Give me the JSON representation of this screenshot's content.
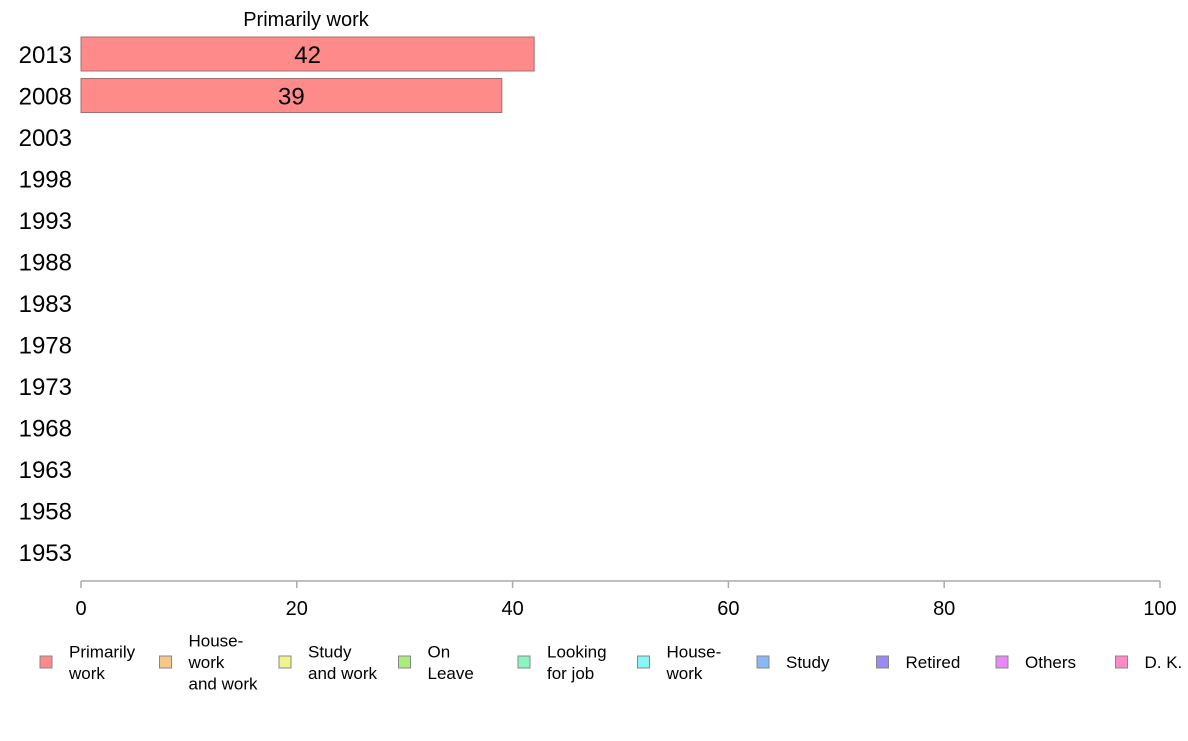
{
  "chart_data": {
    "type": "bar",
    "orientation": "horizontal",
    "title": "Primarily work",
    "xlabel": "",
    "ylabel": "",
    "categories": [
      "2013",
      "2008",
      "2003",
      "1998",
      "1993",
      "1988",
      "1983",
      "1978",
      "1973",
      "1968",
      "1963",
      "1958",
      "1953"
    ],
    "series": [
      {
        "name": "Primarily work",
        "color": "#ff8a8a",
        "values": [
          42,
          39,
          null,
          null,
          null,
          null,
          null,
          null,
          null,
          null,
          null,
          null,
          null
        ],
        "data_labels": [
          "42",
          "39",
          "",
          "",
          "",
          "",
          "",
          "",
          "",
          "",
          "",
          "",
          ""
        ]
      }
    ],
    "xlim": [
      0,
      100
    ],
    "x_ticks": [
      "0",
      "20",
      "40",
      "60",
      "80",
      "100"
    ],
    "grid": false,
    "legend": {
      "placement": "bottom",
      "items": [
        {
          "label": "Primarily\nwork",
          "color": "#ff8a8a"
        },
        {
          "label": "House-\nwork\nand work",
          "color": "#f5c88a"
        },
        {
          "label": "Study\nand work",
          "color": "#eef58a"
        },
        {
          "label": "On\nLeave",
          "color": "#a8ee7a"
        },
        {
          "label": "Looking\nfor job",
          "color": "#8af5c0"
        },
        {
          "label": "House-\nwork",
          "color": "#8af5f5"
        },
        {
          "label": "Study",
          "color": "#8ab8f5"
        },
        {
          "label": "Retired",
          "color": "#9a8af5"
        },
        {
          "label": "Others",
          "color": "#e88af5"
        },
        {
          "label": "D. K.",
          "color": "#ff8ac8"
        }
      ]
    }
  }
}
